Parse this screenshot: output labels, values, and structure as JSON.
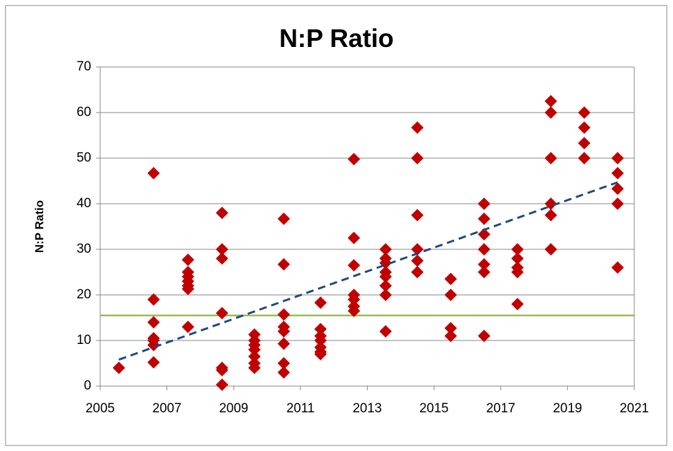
{
  "chart_data": {
    "type": "scatter",
    "title": "N:P Ratio",
    "y_label": "N:P Ratio",
    "color": "#c00000",
    "x": [
      2005.56,
      2006.6,
      2006.6,
      2006.6,
      2006.6,
      2006.6,
      2006.6,
      2006.6,
      2007.63,
      2007.63,
      2007.63,
      2007.63,
      2007.63,
      2007.63,
      2007.63,
      2008.65,
      2008.65,
      2008.65,
      2008.65,
      2008.65,
      2008.65,
      2008.65,
      2009.62,
      2009.62,
      2009.62,
      2009.62,
      2009.62,
      2009.62,
      2009.62,
      2010.5,
      2010.5,
      2010.5,
      2010.5,
      2010.5,
      2010.5,
      2010.5,
      2010.5,
      2011.6,
      2011.6,
      2011.6,
      2011.6,
      2011.6,
      2011.6,
      2011.6,
      2012.6,
      2012.6,
      2012.6,
      2012.6,
      2012.6,
      2012.6,
      2012.6,
      2013.55,
      2013.55,
      2013.55,
      2013.55,
      2013.55,
      2013.55,
      2013.55,
      2013.55,
      2014.5,
      2014.5,
      2014.5,
      2014.5,
      2014.5,
      2014.5,
      2015.5,
      2015.5,
      2015.5,
      2015.5,
      2016.5,
      2016.5,
      2016.5,
      2016.5,
      2016.5,
      2016.5,
      2016.5,
      2017.5,
      2017.5,
      2017.5,
      2017.5,
      2017.5,
      2018.5,
      2018.5,
      2018.5,
      2018.5,
      2018.5,
      2018.5,
      2019.5,
      2019.5,
      2019.5,
      2019.5,
      2020.5,
      2020.5,
      2020.5,
      2020.5,
      2020.5
    ],
    "values": [
      4,
      46.7,
      19,
      14,
      10.5,
      10,
      9,
      5.2,
      27.7,
      25,
      24,
      23,
      22,
      21.3,
      13,
      38,
      30,
      28,
      16,
      4,
      3.5,
      0.3,
      11.3,
      10,
      9,
      8,
      6.5,
      5,
      4,
      36.7,
      26.7,
      15.7,
      13,
      12,
      9.3,
      5,
      3,
      18.3,
      12.5,
      11,
      10,
      8.5,
      7.5,
      7,
      49.8,
      32.5,
      26.5,
      20,
      19,
      17.5,
      16.5,
      30,
      28,
      27,
      25,
      24,
      22,
      20,
      12,
      56.7,
      50,
      37.5,
      30,
      27.5,
      25,
      23.5,
      20,
      12.7,
      11,
      40,
      36.7,
      33.3,
      30,
      26.7,
      25,
      11,
      30,
      28,
      26,
      25,
      18,
      62.5,
      60,
      50,
      40,
      37.5,
      30,
      60,
      56.7,
      53.3,
      50,
      50,
      46.7,
      43.3,
      40,
      26
    ],
    "trendline": {
      "x": [
        2005.56,
        2020.5
      ],
      "y": [
        5.8,
        44.7
      ],
      "color": "#1f497d"
    },
    "reference_line": {
      "value": 15.5,
      "color": "#9bbb59"
    },
    "xlim": [
      2005,
      2021
    ],
    "xticks": [
      2005,
      2007,
      2009,
      2011,
      2013,
      2015,
      2017,
      2019,
      2021
    ],
    "ylim": [
      0,
      70
    ],
    "yticks": [
      0,
      10,
      20,
      30,
      40,
      50,
      60,
      70
    ],
    "grid": true
  }
}
